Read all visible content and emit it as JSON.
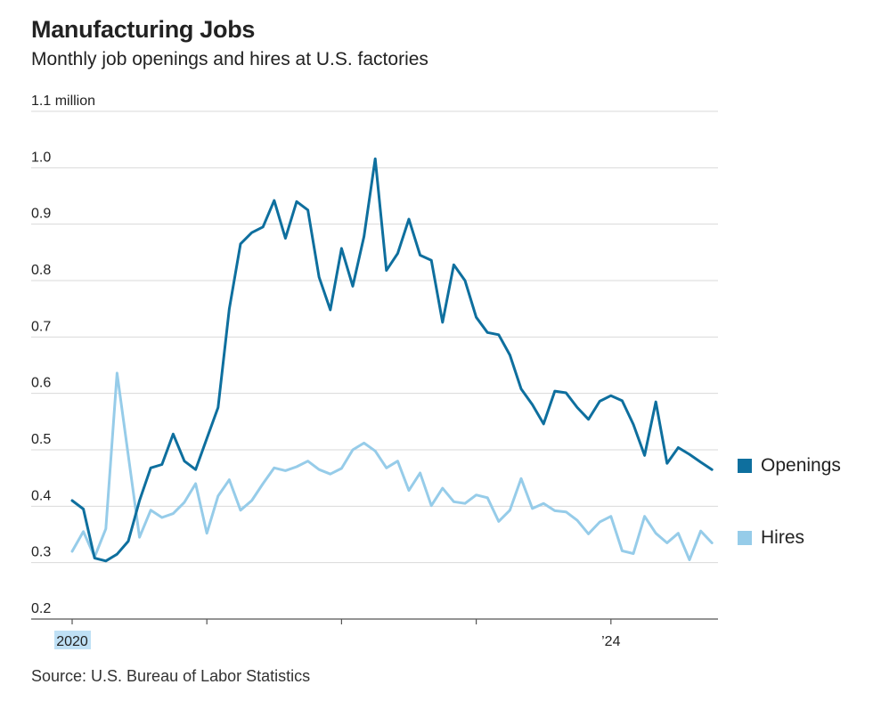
{
  "header": {
    "title": "Manufacturing Jobs",
    "subtitle": "Monthly job openings and hires at U.S. factories"
  },
  "footer": {
    "source": "Source: U.S. Bureau of Labor Statistics"
  },
  "colors": {
    "openings": "#0e6f9e",
    "hires": "#96cce9",
    "grid": "#d9d9d9",
    "axis": "#555555",
    "highlight": "#bfe0f5"
  },
  "chart_data": {
    "type": "line",
    "title": "Manufacturing Jobs",
    "subtitle": "Monthly job openings and hires at U.S. factories",
    "xlabel": "",
    "ylabel": "",
    "ylim": [
      0.2,
      1.1
    ],
    "y_unit": "million",
    "y_ticks": [
      {
        "value": 1.1,
        "label": "1.1 million"
      },
      {
        "value": 1.0,
        "label": "1.0"
      },
      {
        "value": 0.9,
        "label": "0.9"
      },
      {
        "value": 0.8,
        "label": "0.8"
      },
      {
        "value": 0.7,
        "label": "0.7"
      },
      {
        "value": 0.6,
        "label": "0.6"
      },
      {
        "value": 0.5,
        "label": "0.5"
      },
      {
        "value": 0.4,
        "label": "0.4"
      },
      {
        "value": 0.3,
        "label": "0.3"
      },
      {
        "value": 0.2,
        "label": "0.2"
      }
    ],
    "x_start": "2020-01",
    "x_range_months": [
      0,
      57
    ],
    "x_ticks": [
      {
        "month_index": 0,
        "label": "2020"
      },
      {
        "month_index": 12,
        "label": ""
      },
      {
        "month_index": 24,
        "label": ""
      },
      {
        "month_index": 36,
        "label": ""
      },
      {
        "month_index": 48,
        "label": "’24"
      }
    ],
    "grid": true,
    "legend_placement": "right",
    "series": [
      {
        "name": "Openings",
        "values": [
          0.41,
          0.395,
          0.308,
          0.303,
          0.315,
          0.338,
          0.41,
          0.468,
          0.474,
          0.528,
          0.48,
          0.465,
          0.52,
          0.575,
          0.75,
          0.865,
          0.885,
          0.895,
          0.942,
          0.875,
          0.94,
          0.925,
          0.806,
          0.748,
          0.857,
          0.79,
          0.878,
          1.016,
          0.818,
          0.848,
          0.909,
          0.845,
          0.836,
          0.726,
          0.828,
          0.8,
          0.735,
          0.708,
          0.704,
          0.668,
          0.608,
          0.58,
          0.546,
          0.604,
          0.601,
          0.575,
          0.554,
          0.586,
          0.596,
          0.587,
          0.545,
          0.49,
          0.585,
          0.476,
          0.504,
          0.492,
          0.478,
          0.465
        ]
      },
      {
        "name": "Hires",
        "values": [
          0.32,
          0.355,
          0.31,
          0.36,
          0.636,
          0.49,
          0.345,
          0.393,
          0.38,
          0.387,
          0.407,
          0.44,
          0.352,
          0.418,
          0.447,
          0.393,
          0.41,
          0.44,
          0.468,
          0.463,
          0.47,
          0.48,
          0.465,
          0.457,
          0.467,
          0.5,
          0.512,
          0.498,
          0.468,
          0.48,
          0.428,
          0.459,
          0.401,
          0.432,
          0.408,
          0.405,
          0.42,
          0.415,
          0.373,
          0.393,
          0.449,
          0.396,
          0.405,
          0.392,
          0.39,
          0.375,
          0.351,
          0.372,
          0.382,
          0.321,
          0.316,
          0.382,
          0.352,
          0.335,
          0.352,
          0.305,
          0.356,
          0.335
        ]
      }
    ]
  }
}
